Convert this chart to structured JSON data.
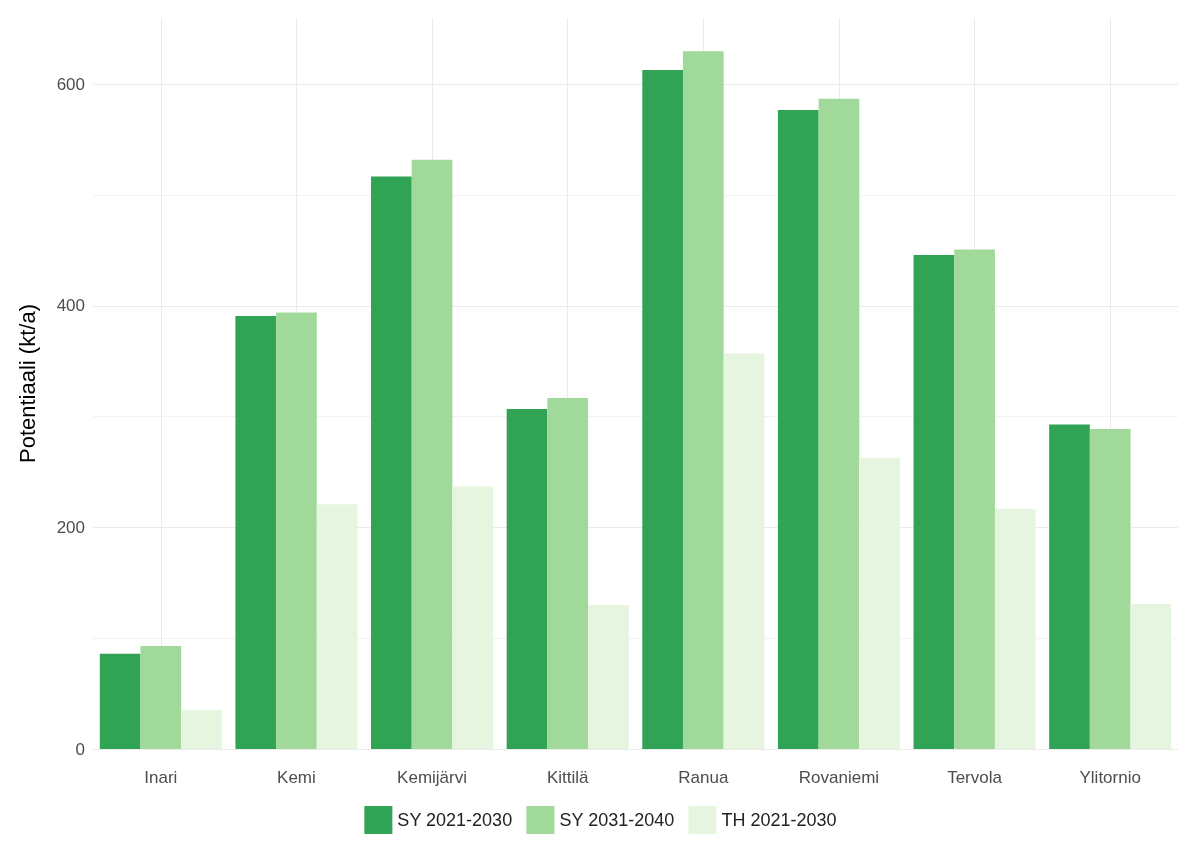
{
  "chart_data": {
    "type": "bar",
    "ylabel": "Potentiaali (kt/a)",
    "categories": [
      "Inari",
      "Kemi",
      "Kemijärvi",
      "Kittilä",
      "Ranua",
      "Rovaniemi",
      "Tervola",
      "Ylitornio"
    ],
    "series": [
      {
        "name": "SY 2021-2030",
        "color": "#31a354",
        "values": [
          86,
          391,
          517,
          307,
          613,
          577,
          446,
          293
        ]
      },
      {
        "name": "SY 2031-2040",
        "color": "#a1d99b",
        "values": [
          93,
          394,
          532,
          317,
          630,
          587,
          451,
          289
        ]
      },
      {
        "name": "TH 2021-2030",
        "color": "#e5f5e0",
        "values": [
          35,
          221,
          237,
          130,
          357,
          263,
          217,
          131
        ]
      }
    ],
    "ylim": [
      0,
      660
    ],
    "yticks": [
      0,
      200,
      400,
      600
    ],
    "grid": true,
    "legend": "bottom"
  }
}
